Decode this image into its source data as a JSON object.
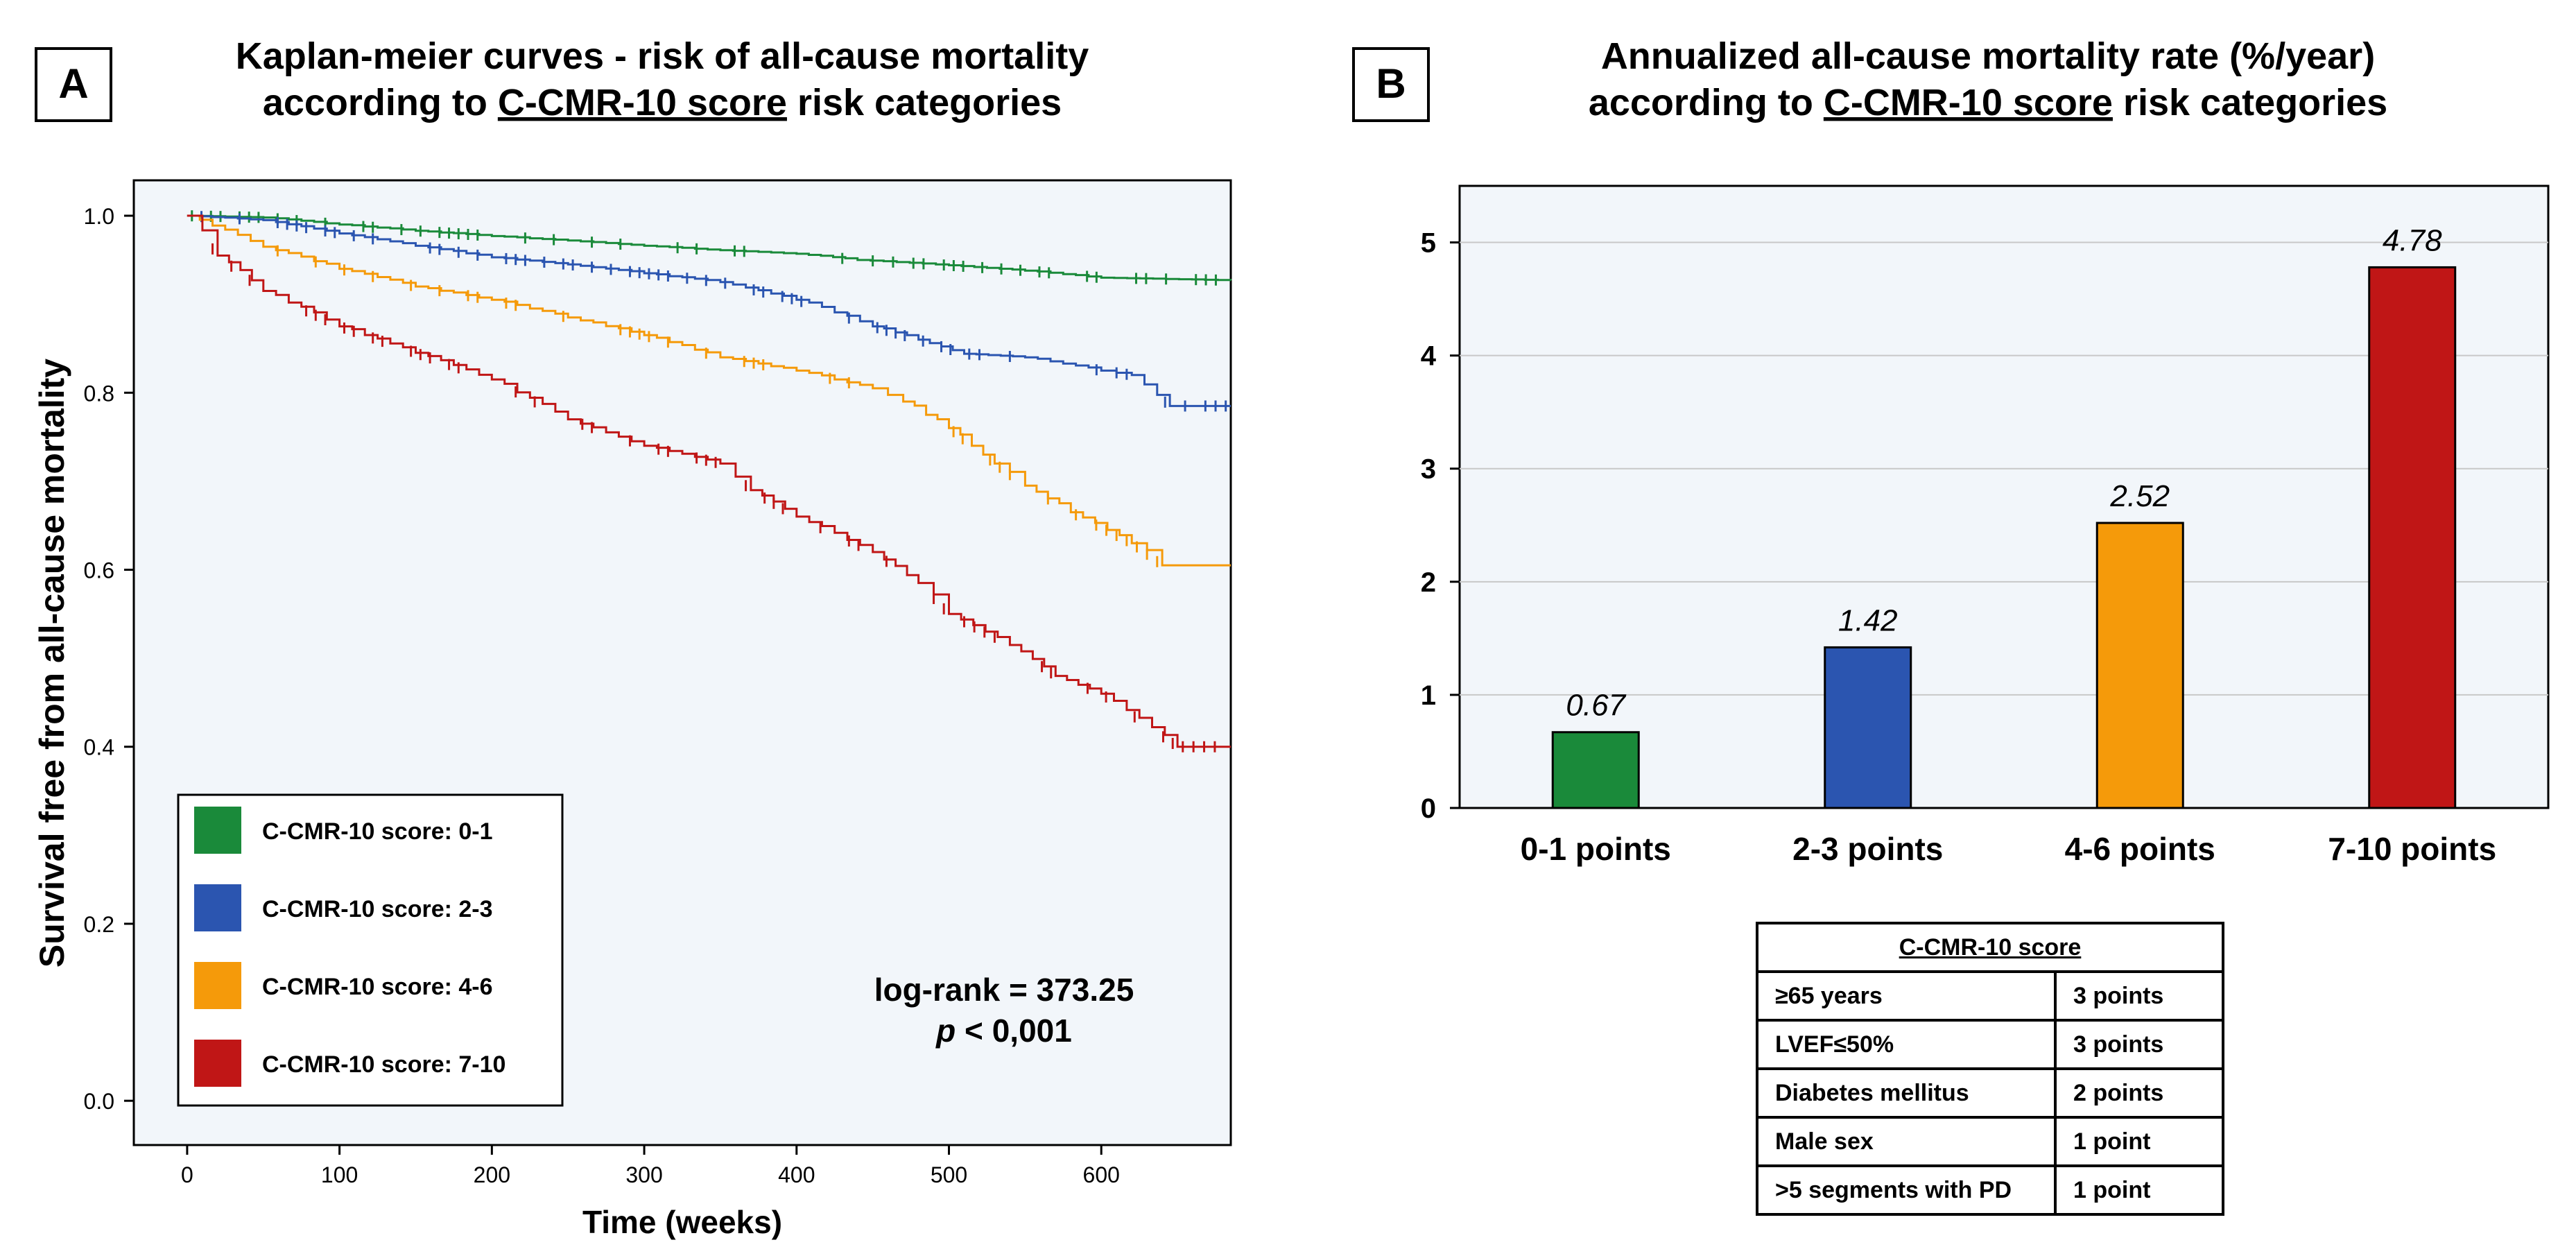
{
  "panel_a": {
    "letter": "A",
    "title_line1": "Kaplan-meier curves - risk of all-cause mortality",
    "title_line2_pre": "according to ",
    "title_line2_underlined": "C-CMR-10 score",
    "title_line2_post": " risk categories",
    "stat_line1": "log-rank = 373.25",
    "stat_line2_p": "p",
    "stat_line2_rest": " < 0,001"
  },
  "panel_b": {
    "letter": "B",
    "title_line1": "Annualized all-cause mortality rate (%/year)",
    "title_line2_pre": "according to ",
    "title_line2_underlined": "C-CMR-10 score",
    "title_line2_post": " risk categories"
  },
  "score_table": {
    "header": "C-CMR-10 score",
    "rows": [
      {
        "criterion": "≥65 years",
        "points": "3 points"
      },
      {
        "criterion": "LVEF≤50%",
        "points": "3 points"
      },
      {
        "criterion": "Diabetes mellitus",
        "points": "2 points"
      },
      {
        "criterion": "Male sex",
        "points": "1 point"
      },
      {
        "criterion": ">5 segments with PD",
        "points": "1 point"
      }
    ]
  },
  "chart_data": [
    {
      "type": "line",
      "title": "Kaplan-meier curves - risk of all-cause mortality according to C-CMR-10 score risk categories",
      "xlabel": "Time (weeks)",
      "ylabel": "Survival free from all-cause mortality",
      "xlim": [
        -35,
        685
      ],
      "ylim": [
        -0.05,
        1.04
      ],
      "xticks": [
        0,
        100,
        200,
        300,
        400,
        500,
        600
      ],
      "yticks": [
        0.0,
        0.2,
        0.4,
        0.6,
        0.8,
        1.0
      ],
      "ytick_labels": [
        "0.0",
        "0.2",
        "0.4",
        "0.6",
        "0.8",
        "1.0"
      ],
      "legend_position": "bottom-left",
      "series": [
        {
          "name": "C-CMR-10 score: 0-1",
          "color": "#1a8a3a",
          "x": [
            0,
            50,
            100,
            150,
            200,
            250,
            300,
            350,
            400,
            440,
            500,
            550,
            600,
            685
          ],
          "y": [
            1.0,
            0.998,
            0.99,
            0.983,
            0.977,
            0.972,
            0.966,
            0.961,
            0.957,
            0.95,
            0.944,
            0.938,
            0.93,
            0.927
          ]
        },
        {
          "name": "C-CMR-10 score: 2-3",
          "color": "#2b55b0",
          "x": [
            0,
            50,
            100,
            150,
            200,
            250,
            300,
            350,
            400,
            450,
            480,
            510,
            550,
            600,
            620,
            645,
            685
          ],
          "y": [
            1.0,
            0.995,
            0.98,
            0.966,
            0.953,
            0.945,
            0.935,
            0.925,
            0.905,
            0.875,
            0.86,
            0.844,
            0.84,
            0.825,
            0.82,
            0.785,
            0.785
          ]
        },
        {
          "name": "C-CMR-10 score: 4-6",
          "color": "#f59a0a",
          "x": [
            0,
            50,
            100,
            150,
            200,
            250,
            300,
            350,
            400,
            450,
            470,
            500,
            530,
            550,
            580,
            620,
            640,
            685
          ],
          "y": [
            1.0,
            0.965,
            0.94,
            0.92,
            0.905,
            0.885,
            0.865,
            0.84,
            0.825,
            0.805,
            0.79,
            0.76,
            0.72,
            0.695,
            0.665,
            0.63,
            0.605,
            0.605
          ]
        },
        {
          "name": "C-CMR-10 score: 7-10",
          "color": "#c01616",
          "x": [
            0,
            20,
            50,
            100,
            150,
            200,
            250,
            300,
            350,
            370,
            400,
            450,
            480,
            500,
            540,
            570,
            600,
            650,
            685
          ],
          "y": [
            1.0,
            0.955,
            0.915,
            0.875,
            0.845,
            0.815,
            0.77,
            0.74,
            0.72,
            0.69,
            0.66,
            0.62,
            0.585,
            0.55,
            0.515,
            0.48,
            0.46,
            0.4,
            0.4
          ]
        }
      ]
    },
    {
      "type": "bar",
      "title": "Annualized all-cause mortality rate (%/year) according to C-CMR-10 score risk categories",
      "xlabel": "",
      "ylabel": "",
      "categories": [
        "0-1 points",
        "2-3 points",
        "4-6 points",
        "7-10 points"
      ],
      "values": [
        0.67,
        1.42,
        2.52,
        4.78
      ],
      "value_labels": [
        "0.67",
        "1.42",
        "2.52",
        "4.78"
      ],
      "colors": [
        "#1a8a3a",
        "#2b55b0",
        "#f59a0a",
        "#c01616"
      ],
      "ylim": [
        0,
        5.5
      ],
      "yticks": [
        0,
        1,
        2,
        3,
        4,
        5
      ],
      "grid": true
    }
  ]
}
